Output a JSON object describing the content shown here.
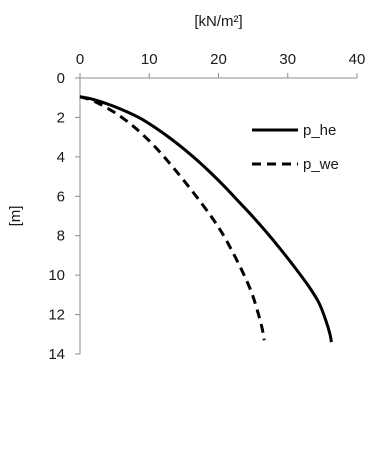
{
  "chart_data": {
    "type": "line",
    "title": "",
    "xlabel": "[kN/m²]",
    "ylabel": "[m]",
    "x_axis_position": "top",
    "y_axis_inverted": true,
    "xlim": [
      0,
      40
    ],
    "ylim": [
      0,
      14
    ],
    "xticks": [
      0,
      10,
      20,
      30,
      40
    ],
    "yticks": [
      0,
      2,
      4,
      6,
      8,
      10,
      12,
      14
    ],
    "grid": false,
    "legend_position": "top-right",
    "series": [
      {
        "name": "p_he",
        "style": "solid",
        "color": "#000000",
        "points": [
          [
            0,
            0.95
          ],
          [
            1.5,
            1.05
          ],
          [
            3,
            1.2
          ],
          [
            5,
            1.45
          ],
          [
            7,
            1.75
          ],
          [
            9,
            2.1
          ],
          [
            11,
            2.55
          ],
          [
            13,
            3.05
          ],
          [
            15,
            3.6
          ],
          [
            17,
            4.2
          ],
          [
            19,
            4.85
          ],
          [
            21,
            5.55
          ],
          [
            23,
            6.3
          ],
          [
            25,
            7.05
          ],
          [
            27,
            7.85
          ],
          [
            29,
            8.7
          ],
          [
            31,
            9.6
          ],
          [
            33,
            10.55
          ],
          [
            34.5,
            11.4
          ],
          [
            35.5,
            12.3
          ],
          [
            36.1,
            13.0
          ],
          [
            36.3,
            13.4
          ]
        ]
      },
      {
        "name": "p_we",
        "style": "dashed",
        "color": "#000000",
        "points": [
          [
            0,
            0.95
          ],
          [
            1.5,
            1.1
          ],
          [
            3,
            1.35
          ],
          [
            5,
            1.75
          ],
          [
            7,
            2.25
          ],
          [
            9,
            2.85
          ],
          [
            11,
            3.55
          ],
          [
            13,
            4.35
          ],
          [
            15,
            5.2
          ],
          [
            17,
            6.1
          ],
          [
            19,
            7.05
          ],
          [
            20.5,
            7.85
          ],
          [
            22,
            8.8
          ],
          [
            23.5,
            9.85
          ],
          [
            24.8,
            10.9
          ],
          [
            25.7,
            11.9
          ],
          [
            26.3,
            12.7
          ],
          [
            26.6,
            13.3
          ]
        ]
      }
    ]
  }
}
